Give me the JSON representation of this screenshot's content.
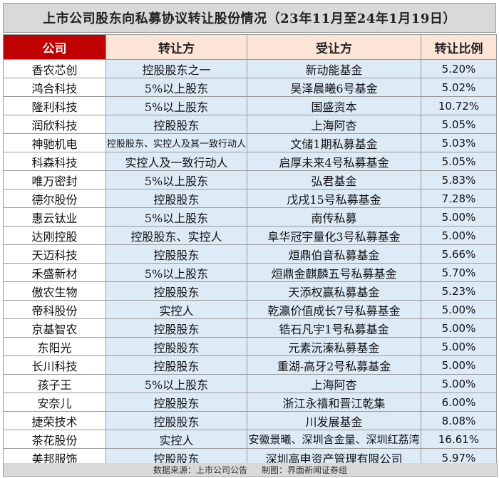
{
  "title": "上市公司股东向私募协议转让股份情况（23年11月至24年1月19日）",
  "headers": [
    "公司",
    "转让方",
    "受让方",
    "转让比例"
  ],
  "rows": [
    [
      "香农芯创",
      "控股股东之一",
      "新动能基金",
      "5.20%"
    ],
    [
      "鸿合科技",
      "5%以上股东",
      "昊泽晨曦6号基金",
      "5.02%"
    ],
    [
      "隆利科技",
      "5%以上股东",
      "国盛资本",
      "10.72%"
    ],
    [
      "润欣科技",
      "控股股东",
      "上海阿杏",
      "5.05%"
    ],
    [
      "神驰机电",
      "控股股东、实控人及其一致行动人",
      "文储1期私募基金",
      "5.03%"
    ],
    [
      "科森科技",
      "实控人及一致行动人",
      "启厚未来4号私募基金",
      "5.05%"
    ],
    [
      "唯万密封",
      "5%以上股东",
      "弘君基金",
      "5.83%"
    ],
    [
      "德尔股份",
      "控股股东",
      "戊戌15号私募基金",
      "7.28%"
    ],
    [
      "惠云钛业",
      "5%以上股东",
      "南传私募",
      "5.00%"
    ],
    [
      "达刚控股",
      "控股股东、实控人",
      "阜华冠宇量化3号私募基金",
      "5.00%"
    ],
    [
      "天迈科技",
      "控股股东",
      "烜鼎伯音私募基金",
      "5.66%"
    ],
    [
      "禾盛新材",
      "5%以上股东",
      "烜鼎金麒麟五号私募基金",
      "5.70%"
    ],
    [
      "傲农生物",
      "控股股东",
      "天添权赢私募基金",
      "5.23%"
    ],
    [
      "帝科股份",
      "实控人",
      "乾瀛价值成长7号私募基金",
      "5.00%"
    ],
    [
      "京基智农",
      "控股股东",
      "锆石凡宇1号私募基金",
      "5.00%"
    ],
    [
      "东阳光",
      "控股股东",
      "元素沅溱私募基金",
      "5.00%"
    ],
    [
      "长川科技",
      "控股股东",
      "重湖-高牙2号私募基金",
      "5.00%"
    ],
    [
      "孩子王",
      "5%以上股东",
      "上海阿杏",
      "5.00%"
    ],
    [
      "安奈儿",
      "控股股东",
      "浙江永禧和晋江乾集",
      "6.00%"
    ],
    [
      "捷荣技术",
      "控股股东",
      "川发展基金",
      "8.08%"
    ],
    [
      "茶花股份",
      "实控人",
      "安徽景曦、深圳含金量、深圳红荔湾",
      "16.61%"
    ],
    [
      "美邦服饰",
      "控股股东",
      "深圳高申资产管理有限公司",
      "5.97%"
    ]
  ],
  "footer": {
    "source": "数据来源：上市公司公告",
    "credit": "制图：界面新闻证券组"
  }
}
